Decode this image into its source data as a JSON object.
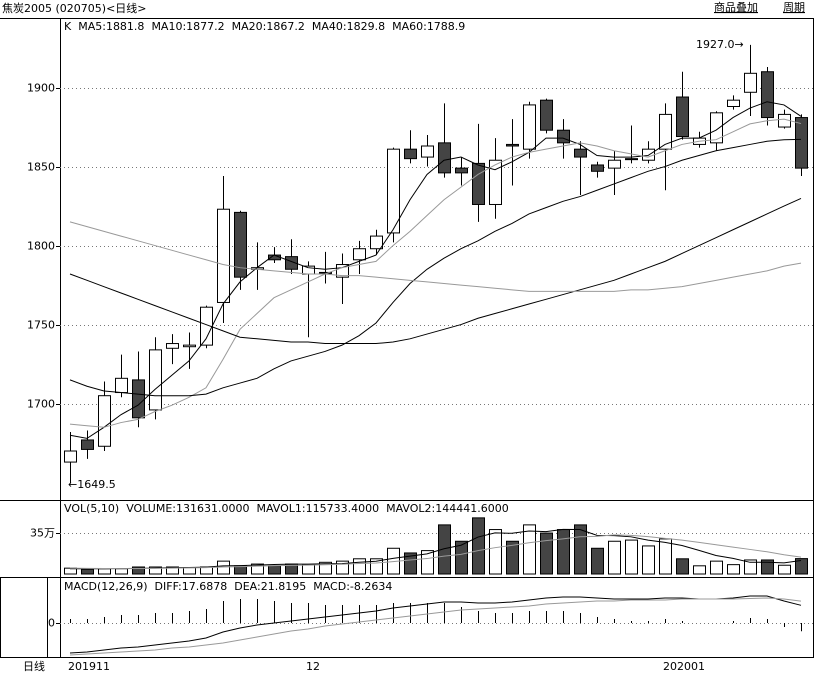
{
  "header": {
    "title": "焦炭2005 (020705)<日线>",
    "buttons": [
      "商品叠加",
      "周期"
    ]
  },
  "footer": {
    "period": "日线"
  },
  "chart_data": [
    {
      "type": "candlestick",
      "title": "K",
      "categories": [
        "201911",
        null,
        null,
        null,
        null,
        null,
        null,
        null,
        null,
        null,
        null,
        null,
        null,
        null,
        "12",
        null,
        null,
        null,
        null,
        null,
        null,
        null,
        null,
        null,
        null,
        null,
        null,
        null,
        null,
        null,
        null,
        null,
        null,
        null,
        null,
        "202001",
        null,
        null,
        null,
        null,
        null,
        null,
        null,
        null
      ],
      "open": [
        1663,
        1677,
        1673,
        1707,
        1715,
        1696,
        1735,
        1736,
        1737,
        1764,
        1821,
        1785,
        1794,
        1793,
        1782,
        1783,
        1780,
        1791,
        1798,
        1808,
        1861,
        1856,
        1865,
        1849,
        1852,
        1826,
        1864,
        1861,
        1892,
        1873,
        1861,
        1851,
        1849,
        1855,
        1854,
        1861,
        1894,
        1864,
        1865,
        1888,
        1897,
        1910,
        1875,
        1881
      ],
      "high": [
        1682,
        1683,
        1714,
        1731,
        1733,
        1742,
        1744,
        1745,
        1762,
        1844,
        1822,
        1802,
        1799,
        1804,
        1790,
        1796,
        1795,
        1803,
        1810,
        1862,
        1873,
        1870,
        1890,
        1856,
        1877,
        1868,
        1880,
        1891,
        1893,
        1880,
        1866,
        1853,
        1860,
        1876,
        1866,
        1890,
        1910,
        1872,
        1885,
        1895,
        1927,
        1913,
        1886,
        1883
      ],
      "low": [
        1649.5,
        1665,
        1670,
        1704,
        1685,
        1690,
        1725,
        1722,
        1735,
        1751,
        1772,
        1772,
        1789,
        1782,
        1742,
        1776,
        1763,
        1782,
        1794,
        1802,
        1852,
        1850,
        1843,
        1838,
        1815,
        1817,
        1838,
        1855,
        1871,
        1855,
        1832,
        1843,
        1832,
        1852,
        1852,
        1835,
        1867,
        1862,
        1860,
        1886,
        1882,
        1876,
        1874,
        1844
      ],
      "close": [
        1670,
        1671,
        1705,
        1716,
        1691,
        1734,
        1738,
        1737,
        1761,
        1823,
        1780,
        1786,
        1791,
        1785,
        1787,
        1783,
        1788,
        1798,
        1806,
        1861,
        1855,
        1863,
        1846,
        1846,
        1826,
        1854,
        1863,
        1889,
        1873,
        1865,
        1856,
        1847,
        1854,
        1855,
        1861,
        1883,
        1869,
        1868,
        1884,
        1892,
        1909,
        1881,
        1883,
        1849
      ],
      "up_color": "#ffffff",
      "down_color": "#444444",
      "series": [
        {
          "name": "MA5:1881.8",
          "color": "#000000",
          "values": [
            1680,
            1678,
            1685,
            1693,
            1699,
            1709,
            1718,
            1727,
            1741,
            1763,
            1777,
            1786,
            1794,
            1790,
            1786,
            1785,
            1786,
            1790,
            1794,
            1810,
            1829,
            1845,
            1854,
            1856,
            1851,
            1848,
            1853,
            1859,
            1868,
            1868,
            1864,
            1857,
            1856,
            1856,
            1857,
            1864,
            1868,
            1868,
            1873,
            1881,
            1887,
            1891,
            1889,
            1881.8
          ]
        },
        {
          "name": "MA10:1877.2",
          "color": "#999999",
          "values": [
            1687,
            1686,
            1685,
            1688,
            1690,
            1695,
            1699,
            1704,
            1710,
            1728,
            1747,
            1757,
            1767,
            1772,
            1777,
            1782,
            1786,
            1788,
            1790,
            1800,
            1809,
            1819,
            1829,
            1837,
            1845,
            1851,
            1856,
            1859,
            1861,
            1863,
            1865,
            1863,
            1860,
            1858,
            1856,
            1860,
            1864,
            1866,
            1867,
            1872,
            1877,
            1879,
            1880,
            1877.2
          ]
        },
        {
          "name": "MA20:1867.2",
          "color": "#000000",
          "values": [
            1715,
            1711,
            1708,
            1707,
            1706,
            1705,
            1705,
            1705,
            1706,
            1710,
            1713,
            1716,
            1722,
            1727,
            1730,
            1733,
            1737,
            1743,
            1751,
            1764,
            1776,
            1785,
            1792,
            1798,
            1803,
            1809,
            1814,
            1820,
            1824,
            1828,
            1831,
            1835,
            1839,
            1843,
            1847,
            1850,
            1854,
            1857,
            1860,
            1862,
            1864,
            1866,
            1867,
            1867.2
          ]
        },
        {
          "name": "MA40:1829.8",
          "color": "#000000",
          "values": [
            1782,
            1778,
            1774,
            1770,
            1766,
            1762,
            1758,
            1754,
            1750,
            1746,
            1742,
            1741,
            1740,
            1739,
            1739,
            1738,
            1738,
            1738,
            1738,
            1739,
            1741,
            1744,
            1747,
            1750,
            1754,
            1757,
            1760,
            1763,
            1766,
            1769,
            1772,
            1775,
            1778,
            1782,
            1786,
            1790,
            1795,
            1800,
            1805,
            1810,
            1815,
            1820,
            1825,
            1829.8
          ]
        },
        {
          "name": "MA60:1788.9",
          "color": "#999999",
          "values": [
            1815,
            1812,
            1809,
            1806,
            1803,
            1800,
            1797,
            1794,
            1791,
            1788,
            1786,
            1785,
            1784,
            1783,
            1782,
            1782,
            1781,
            1781,
            1780,
            1779,
            1778,
            1777,
            1776,
            1775,
            1774,
            1773,
            1772,
            1771,
            1771,
            1771,
            1771,
            1771,
            1771,
            1772,
            1772,
            1773,
            1774,
            1776,
            1778,
            1780,
            1782,
            1784,
            1787,
            1788.9
          ]
        }
      ],
      "annotations": [
        "1927.0→",
        "←1649.5"
      ],
      "ylim": [
        1639,
        1944
      ],
      "yticks": [
        1700,
        1750,
        1800,
        1850,
        1900
      ],
      "grid": true
    },
    {
      "type": "volume",
      "title": "VOL(5,10)",
      "series": [
        {
          "name": "VOLUME:131631.0000",
          "mark": "bar",
          "color": "#000000",
          "values": [
            50000,
            40000,
            45000,
            45000,
            60000,
            60000,
            60000,
            55000,
            60000,
            110000,
            70000,
            85000,
            70000,
            85000,
            80000,
            100000,
            110000,
            130000,
            130000,
            220000,
            180000,
            200000,
            420000,
            280000,
            480000,
            380000,
            280000,
            420000,
            350000,
            380000,
            420000,
            220000,
            280000,
            290000,
            240000,
            300000,
            130000,
            70000,
            110000,
            80000,
            120000,
            120000,
            75000,
            131631
          ]
        },
        {
          "name": "MAVOL1:115733.4000",
          "mark": "line",
          "color": "#000000",
          "values": [
            45000,
            45000,
            45000,
            47000,
            48000,
            50000,
            54000,
            56000,
            59000,
            69000,
            72000,
            76000,
            81000,
            84000,
            84000,
            88000,
            89000,
            101000,
            109000,
            134000,
            153000,
            172000,
            216000,
            246000,
            316000,
            352000,
            348000,
            368000,
            362000,
            382000,
            380000,
            330000,
            328000,
            318000,
            290000,
            270000,
            244000,
            202000,
            158000,
            134000,
            100000,
            100000,
            95000,
            115733.4
          ]
        },
        {
          "name": "MAVOL2:144441.6000",
          "mark": "line",
          "color": "#999999",
          "values": [
            50000,
            48000,
            47000,
            46000,
            47000,
            48000,
            50000,
            52000,
            55000,
            60000,
            63000,
            67000,
            70000,
            74000,
            76000,
            79000,
            83000,
            90000,
            94000,
            106000,
            120000,
            132000,
            153000,
            168000,
            200000,
            225000,
            245000,
            267000,
            285000,
            300000,
            318000,
            322000,
            335000,
            330000,
            320000,
            305000,
            290000,
            270000,
            250000,
            230000,
            210000,
            190000,
            165000,
            144441.6
          ]
        }
      ],
      "ylim": [
        0,
        590000
      ],
      "yticks": [
        {
          "value": 350000,
          "label": "35万"
        }
      ],
      "grid": true
    },
    {
      "type": "macd",
      "title": "MACD(12,26,9)",
      "series": [
        {
          "name": "DIFF:17.6878",
          "mark": "line",
          "color": "#000000",
          "values": [
            -30,
            -29,
            -27,
            -25,
            -24,
            -22,
            -20,
            -18,
            -15,
            -9,
            -5,
            -2,
            0,
            2,
            4,
            6,
            8,
            10,
            12,
            15,
            17,
            19,
            21,
            21,
            20,
            20,
            21,
            23,
            25,
            26,
            26,
            25,
            24,
            24,
            24,
            25,
            25,
            24,
            24,
            25,
            27,
            27,
            22,
            17.6878
          ]
        },
        {
          "name": "DEA:21.8195",
          "mark": "line",
          "color": "#999999",
          "values": [
            -32,
            -31,
            -30,
            -29,
            -28,
            -27,
            -25,
            -24,
            -22,
            -20,
            -17,
            -14,
            -11,
            -8,
            -6,
            -3,
            -1,
            1,
            3,
            5,
            7,
            9,
            11,
            13,
            14,
            15,
            16,
            17,
            19,
            20,
            21,
            22,
            22,
            23,
            23,
            23,
            24,
            24,
            24,
            24,
            24.5,
            25,
            24,
            21.8195
          ]
        },
        {
          "name": "MACD:-8.2634",
          "mark": "bar",
          "color": "#000000",
          "values": [
            4,
            4,
            6,
            8,
            8,
            10,
            10,
            12,
            14,
            22,
            24,
            24,
            22,
            20,
            20,
            18,
            18,
            18,
            18,
            20,
            20,
            20,
            20,
            16,
            12,
            10,
            10,
            12,
            12,
            12,
            10,
            6,
            4,
            2,
            2,
            4,
            2,
            0,
            0,
            2,
            5,
            4,
            -4,
            -8.2634
          ]
        }
      ],
      "ylim": [
        -34,
        46
      ],
      "yticks": [
        0
      ],
      "grid": true
    }
  ]
}
